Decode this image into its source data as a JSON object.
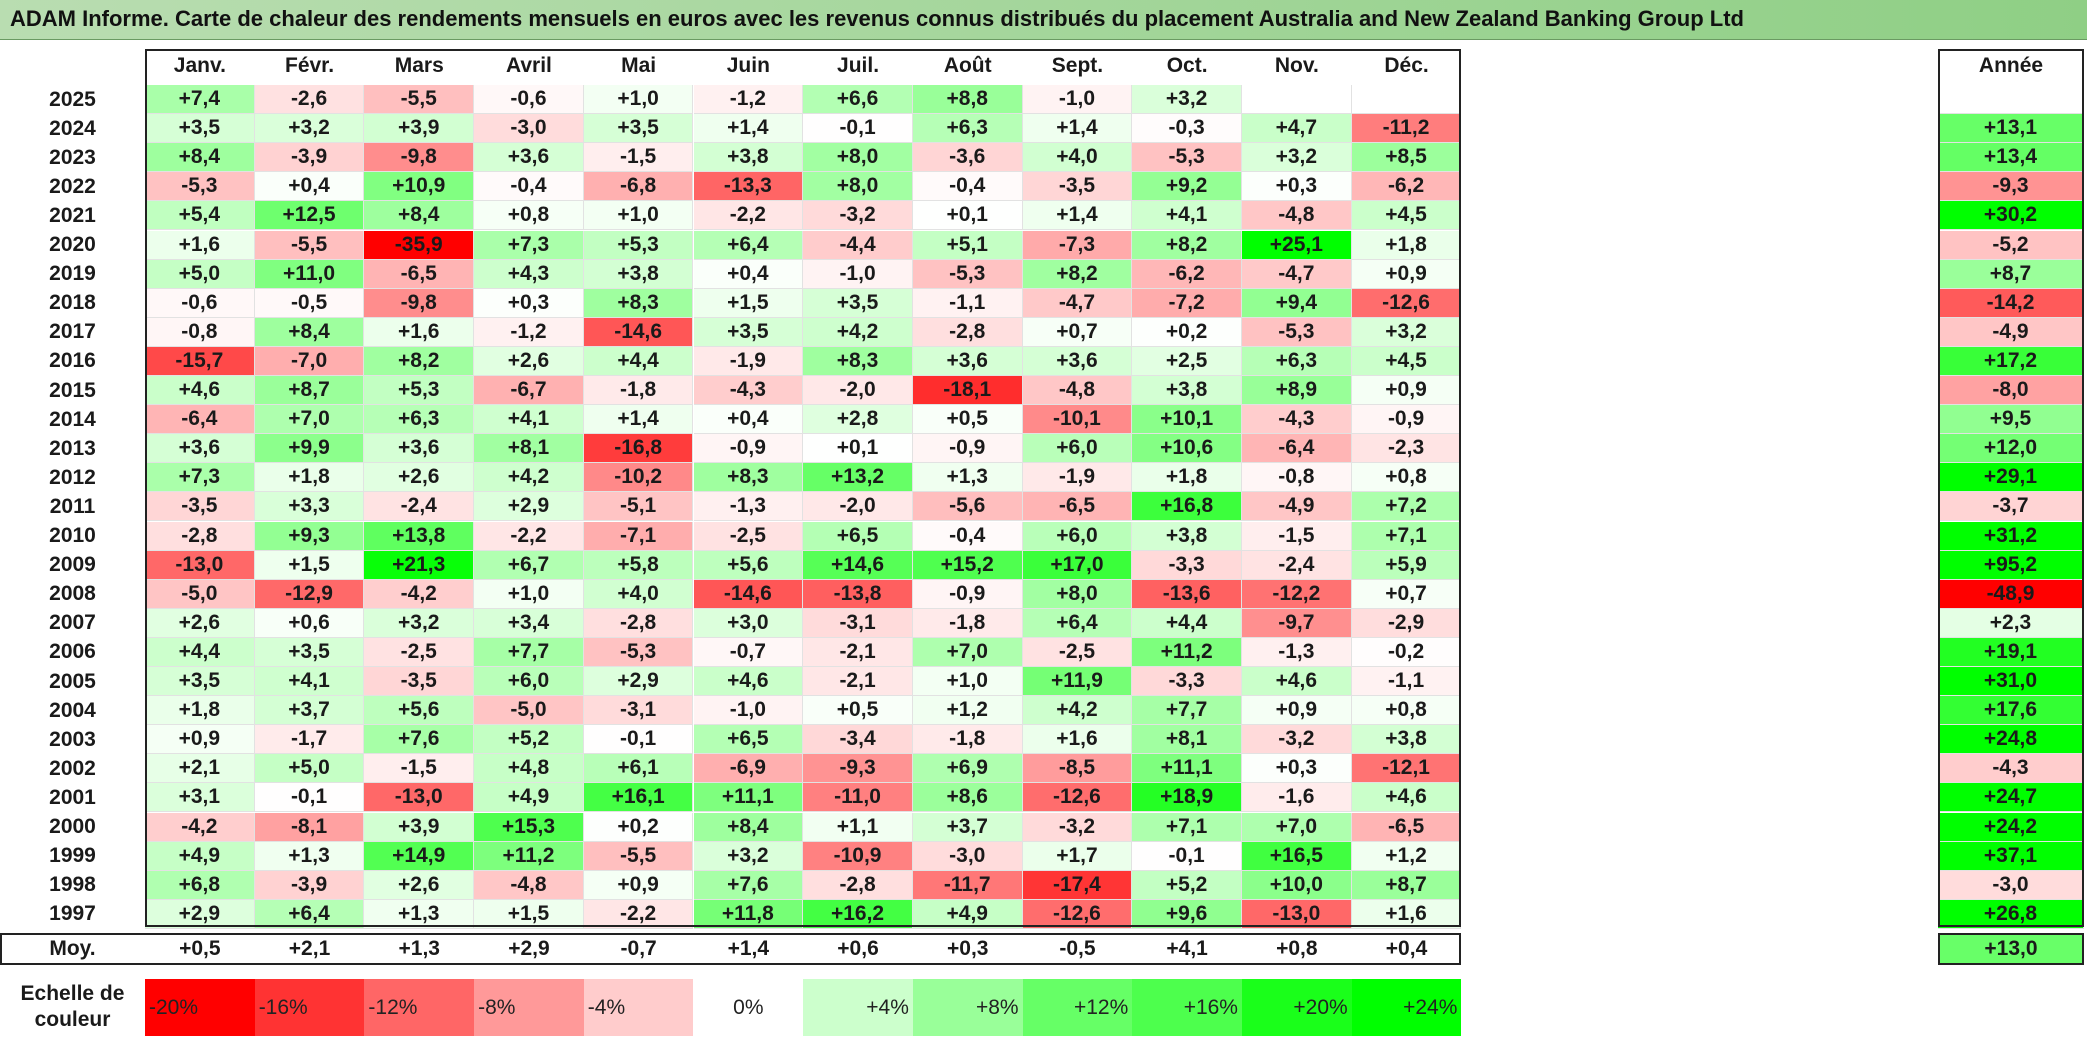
{
  "title": "ADAM Informe. Carte de chaleur des rendements mensuels en euros avec les revenus connus distribués du placement Australia and New Zealand Banking Group Ltd",
  "chart_data": {
    "type": "heatmap",
    "title": "ADAM Informe. Carte de chaleur des rendements mensuels en euros avec les revenus connus distribués du placement Australia and New Zealand Banking Group Ltd",
    "columns": [
      "Janv.",
      "Févr.",
      "Mars",
      "Avril",
      "Mai",
      "Juin",
      "Juil.",
      "Août",
      "Sept.",
      "Oct.",
      "Nov.",
      "Déc."
    ],
    "annual_header": "Année",
    "rows": [
      {
        "year": "2025",
        "values": [
          "+7,4",
          "-2,6",
          "-5,5",
          "-0,6",
          "+1,0",
          "-1,2",
          "+6,6",
          "+8,8",
          "-1,0",
          "+3,2",
          "",
          ""
        ],
        "annual": ""
      },
      {
        "year": "2024",
        "values": [
          "+3,5",
          "+3,2",
          "+3,9",
          "-3,0",
          "+3,5",
          "+1,4",
          "-0,1",
          "+6,3",
          "+1,4",
          "-0,3",
          "+4,7",
          "-11,2"
        ],
        "annual": "+13,1"
      },
      {
        "year": "2023",
        "values": [
          "+8,4",
          "-3,9",
          "-9,8",
          "+3,6",
          "-1,5",
          "+3,8",
          "+8,0",
          "-3,6",
          "+4,0",
          "-5,3",
          "+3,2",
          "+8,5"
        ],
        "annual": "+13,4"
      },
      {
        "year": "2022",
        "values": [
          "-5,3",
          "+0,4",
          "+10,9",
          "-0,4",
          "-6,8",
          "-13,3",
          "+8,0",
          "-0,4",
          "-3,5",
          "+9,2",
          "+0,3",
          "-6,2"
        ],
        "annual": "-9,3"
      },
      {
        "year": "2021",
        "values": [
          "+5,4",
          "+12,5",
          "+8,4",
          "+0,8",
          "+1,0",
          "-2,2",
          "-3,2",
          "+0,1",
          "+1,4",
          "+4,1",
          "-4,8",
          "+4,5"
        ],
        "annual": "+30,2"
      },
      {
        "year": "2020",
        "values": [
          "+1,6",
          "-5,5",
          "-35,9",
          "+7,3",
          "+5,3",
          "+6,4",
          "-4,4",
          "+5,1",
          "-7,3",
          "+8,2",
          "+25,1",
          "+1,8"
        ],
        "annual": "-5,2"
      },
      {
        "year": "2019",
        "values": [
          "+5,0",
          "+11,0",
          "-6,5",
          "+4,3",
          "+3,8",
          "+0,4",
          "-1,0",
          "-5,3",
          "+8,2",
          "-6,2",
          "-4,7",
          "+0,9"
        ],
        "annual": "+8,7"
      },
      {
        "year": "2018",
        "values": [
          "-0,6",
          "-0,5",
          "-9,8",
          "+0,3",
          "+8,3",
          "+1,5",
          "+3,5",
          "-1,1",
          "-4,7",
          "-7,2",
          "+9,4",
          "-12,6"
        ],
        "annual": "-14,2"
      },
      {
        "year": "2017",
        "values": [
          "-0,8",
          "+8,4",
          "+1,6",
          "-1,2",
          "-14,6",
          "+3,5",
          "+4,2",
          "-2,8",
          "+0,7",
          "+0,2",
          "-5,3",
          "+3,2"
        ],
        "annual": "-4,9"
      },
      {
        "year": "2016",
        "values": [
          "-15,7",
          "-7,0",
          "+8,2",
          "+2,6",
          "+4,4",
          "-1,9",
          "+8,3",
          "+3,6",
          "+3,6",
          "+2,5",
          "+6,3",
          "+4,5"
        ],
        "annual": "+17,2"
      },
      {
        "year": "2015",
        "values": [
          "+4,6",
          "+8,7",
          "+5,3",
          "-6,7",
          "-1,8",
          "-4,3",
          "-2,0",
          "-18,1",
          "-4,8",
          "+3,8",
          "+8,9",
          "+0,9"
        ],
        "annual": "-8,0"
      },
      {
        "year": "2014",
        "values": [
          "-6,4",
          "+7,0",
          "+6,3",
          "+4,1",
          "+1,4",
          "+0,4",
          "+2,8",
          "+0,5",
          "-10,1",
          "+10,1",
          "-4,3",
          "-0,9"
        ],
        "annual": "+9,5"
      },
      {
        "year": "2013",
        "values": [
          "+3,6",
          "+9,9",
          "+3,6",
          "+8,1",
          "-16,8",
          "-0,9",
          "+0,1",
          "-0,9",
          "+6,0",
          "+10,6",
          "-6,4",
          "-2,3"
        ],
        "annual": "+12,0"
      },
      {
        "year": "2012",
        "values": [
          "+7,3",
          "+1,8",
          "+2,6",
          "+4,2",
          "-10,2",
          "+8,3",
          "+13,2",
          "+1,3",
          "-1,9",
          "+1,8",
          "-0,8",
          "+0,8"
        ],
        "annual": "+29,1"
      },
      {
        "year": "2011",
        "values": [
          "-3,5",
          "+3,3",
          "-2,4",
          "+2,9",
          "-5,1",
          "-1,3",
          "-2,0",
          "-5,6",
          "-6,5",
          "+16,8",
          "-4,9",
          "+7,2"
        ],
        "annual": "-3,7"
      },
      {
        "year": "2010",
        "values": [
          "-2,8",
          "+9,3",
          "+13,8",
          "-2,2",
          "-7,1",
          "-2,5",
          "+6,5",
          "-0,4",
          "+6,0",
          "+3,8",
          "-1,5",
          "+7,1"
        ],
        "annual": "+31,2"
      },
      {
        "year": "2009",
        "values": [
          "-13,0",
          "+1,5",
          "+21,3",
          "+6,7",
          "+5,8",
          "+5,6",
          "+14,6",
          "+15,2",
          "+17,0",
          "-3,3",
          "-2,4",
          "+5,9"
        ],
        "annual": "+95,2"
      },
      {
        "year": "2008",
        "values": [
          "-5,0",
          "-12,9",
          "-4,2",
          "+1,0",
          "+4,0",
          "-14,6",
          "-13,8",
          "-0,9",
          "+8,0",
          "-13,6",
          "-12,2",
          "+0,7"
        ],
        "annual": "-48,9"
      },
      {
        "year": "2007",
        "values": [
          "+2,6",
          "+0,6",
          "+3,2",
          "+3,4",
          "-2,8",
          "+3,0",
          "-3,1",
          "-1,8",
          "+6,4",
          "+4,4",
          "-9,7",
          "-2,9"
        ],
        "annual": "+2,3"
      },
      {
        "year": "2006",
        "values": [
          "+4,4",
          "+3,5",
          "-2,5",
          "+7,7",
          "-5,3",
          "-0,7",
          "-2,1",
          "+7,0",
          "-2,5",
          "+11,2",
          "-1,3",
          "-0,2"
        ],
        "annual": "+19,1"
      },
      {
        "year": "2005",
        "values": [
          "+3,5",
          "+4,1",
          "-3,5",
          "+6,0",
          "+2,9",
          "+4,6",
          "-2,1",
          "+1,0",
          "+11,9",
          "-3,3",
          "+4,6",
          "-1,1"
        ],
        "annual": "+31,0"
      },
      {
        "year": "2004",
        "values": [
          "+1,8",
          "+3,7",
          "+5,6",
          "-5,0",
          "-3,1",
          "-1,0",
          "+0,5",
          "+1,2",
          "+4,2",
          "+7,7",
          "+0,9",
          "+0,8"
        ],
        "annual": "+17,6"
      },
      {
        "year": "2003",
        "values": [
          "+0,9",
          "-1,7",
          "+7,6",
          "+5,2",
          "-0,1",
          "+6,5",
          "-3,4",
          "-1,8",
          "+1,6",
          "+8,1",
          "-3,2",
          "+3,8"
        ],
        "annual": "+24,8"
      },
      {
        "year": "2002",
        "values": [
          "+2,1",
          "+5,0",
          "-1,5",
          "+4,8",
          "+6,1",
          "-6,9",
          "-9,3",
          "+6,9",
          "-8,5",
          "+11,1",
          "+0,3",
          "-12,1"
        ],
        "annual": "-4,3"
      },
      {
        "year": "2001",
        "values": [
          "+3,1",
          "-0,1",
          "-13,0",
          "+4,9",
          "+16,1",
          "+11,1",
          "-11,0",
          "+8,6",
          "-12,6",
          "+18,9",
          "-1,6",
          "+4,6"
        ],
        "annual": "+24,7"
      },
      {
        "year": "2000",
        "values": [
          "-4,2",
          "-8,1",
          "+3,9",
          "+15,3",
          "+0,2",
          "+8,4",
          "+1,1",
          "+3,7",
          "-3,2",
          "+7,1",
          "+7,0",
          "-6,5"
        ],
        "annual": "+24,2"
      },
      {
        "year": "1999",
        "values": [
          "+4,9",
          "+1,3",
          "+14,9",
          "+11,2",
          "-5,5",
          "+3,2",
          "-10,9",
          "-3,0",
          "+1,7",
          "-0,1",
          "+16,5",
          "+1,2"
        ],
        "annual": "+37,1"
      },
      {
        "year": "1998",
        "values": [
          "+6,8",
          "-3,9",
          "+2,6",
          "-4,8",
          "+0,9",
          "+7,6",
          "-2,8",
          "-11,7",
          "-17,4",
          "+5,2",
          "+10,0",
          "+8,7"
        ],
        "annual": "-3,0"
      },
      {
        "year": "1997",
        "values": [
          "+2,9",
          "+6,4",
          "+1,3",
          "+1,5",
          "-2,2",
          "+11,8",
          "+16,2",
          "+4,9",
          "-12,6",
          "+9,6",
          "-13,0",
          "+1,6"
        ],
        "annual": "+26,8"
      }
    ],
    "average": {
      "label": "Moy.",
      "values": [
        "+0,5",
        "+2,1",
        "+1,3",
        "+2,9",
        "-0,7",
        "+1,4",
        "+0,6",
        "+0,3",
        "-0,5",
        "+4,1",
        "+0,8",
        "+0,4"
      ],
      "annual": "+13,0"
    },
    "color_scale": {
      "label": "Echelle de couleur",
      "entries": [
        {
          "text": "-20%",
          "value": -20,
          "color": "#ff0000"
        },
        {
          "text": "-16%",
          "value": -16,
          "color": "#ff3333"
        },
        {
          "text": "-12%",
          "value": -12,
          "color": "#ff6666"
        },
        {
          "text": "-8%",
          "value": -8,
          "color": "#ff9999"
        },
        {
          "text": "-4%",
          "value": -4,
          "color": "#ffcccc"
        },
        {
          "text": "0%",
          "value": 0,
          "color": "#ffffff"
        },
        {
          "text": "+4%",
          "value": 4,
          "color": "#ccffcc"
        },
        {
          "text": "+8%",
          "value": 8,
          "color": "#99ff99"
        },
        {
          "text": "+12%",
          "value": 12,
          "color": "#66ff66"
        },
        {
          "text": "+16%",
          "value": 16,
          "color": "#4dff4d"
        },
        {
          "text": "+20%",
          "value": 20,
          "color": "#1aff1a"
        },
        {
          "text": "+24%",
          "value": 24,
          "color": "#00ff00"
        }
      ]
    }
  }
}
